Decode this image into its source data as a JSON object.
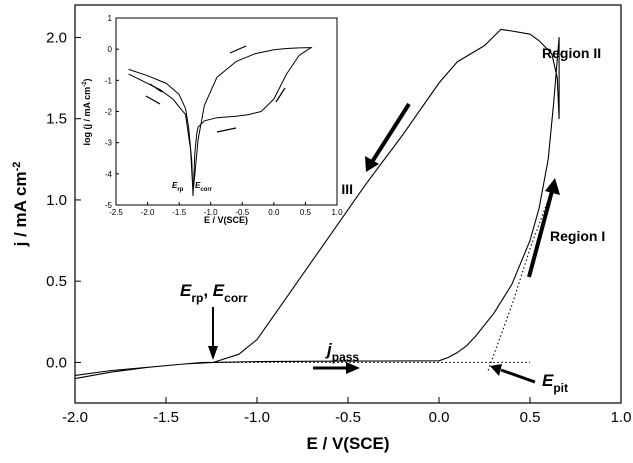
{
  "chart_data": [
    {
      "type": "line",
      "xlabel": "E / V(SCE)",
      "ylabel": "j / mA cm",
      "ylabel_sup": "-2",
      "xlim": [
        -2.0,
        1.0
      ],
      "ylim": [
        -0.25,
        2.2
      ],
      "x_ticks": [
        "-2.0",
        "-1.5",
        "-1.0",
        "-0.5",
        "0.0",
        "0.5",
        "1.0"
      ],
      "y_ticks": [
        "0.0",
        "0.5",
        "1.0",
        "1.5",
        "2.0"
      ],
      "grid": false,
      "series": [
        {
          "x": [
            -2.0,
            -1.8,
            -1.6,
            -1.4,
            -1.3,
            -1.24,
            -1.0,
            -0.5,
            0.0,
            0.05,
            0.1,
            0.15,
            0.2,
            0.3,
            0.4,
            0.5,
            0.55,
            0.6,
            0.63,
            0.66,
            0.66,
            0.65,
            0.62,
            0.55,
            0.5,
            0.45,
            0.4,
            0.34,
            0.25,
            0.1,
            0.0,
            -0.2,
            -0.4,
            -0.5,
            -0.6,
            -0.8,
            -0.9,
            -1.0,
            -1.1,
            -1.24,
            -1.4,
            -1.6,
            -1.8,
            -2.0
          ],
          "y": [
            -0.1,
            -0.06,
            -0.03,
            -0.01,
            0.0,
            0.0,
            0.005,
            0.008,
            0.01,
            0.03,
            0.06,
            0.1,
            0.16,
            0.3,
            0.48,
            0.75,
            0.95,
            1.25,
            1.6,
            2.0,
            1.5,
            1.75,
            1.9,
            1.98,
            2.02,
            2.03,
            2.04,
            2.05,
            1.95,
            1.85,
            1.72,
            1.4,
            1.1,
            0.94,
            0.78,
            0.46,
            0.3,
            0.14,
            0.05,
            0.0,
            -0.01,
            -0.03,
            -0.05,
            -0.08
          ]
        },
        {
          "style": "dotted",
          "x": [
            -1.24,
            0.0,
            0.5
          ],
          "y": [
            0.0,
            0.0,
            0.0
          ]
        },
        {
          "style": "dotted",
          "x": [
            0.27,
            0.4,
            0.5,
            0.6
          ],
          "y": [
            -0.05,
            0.35,
            0.7,
            1.0
          ]
        }
      ],
      "annotations": {
        "region_ii": "Region II",
        "region_i": "Region I",
        "region_iii": "Region III",
        "j_pass": "j",
        "j_pass_sub": "pass",
        "e_pit": "E",
        "e_pit_sub": "pit",
        "e_rp": "E",
        "e_rp_sub": "rp",
        "comma": ", ",
        "e_corr": "E",
        "e_corr_sub": "corr"
      }
    },
    {
      "type": "line",
      "xlabel": "E / V(SCE)",
      "ylabel": "log (j / mA cm",
      "ylabel_sup": "-2",
      "ylabel_end": ")",
      "xlim": [
        -2.5,
        1.0
      ],
      "ylim": [
        -5,
        1
      ],
      "x_ticks": [
        "-2.5",
        "-2.0",
        "-1.5",
        "-1.0",
        "-0.5",
        "0.0",
        "0.5",
        "1.0"
      ],
      "y_ticks": [
        "1",
        "0",
        "-1",
        "-2",
        "-3",
        "-4",
        "-5"
      ],
      "annotations": {
        "e_rp": "E",
        "e_rp_sub": "rp",
        "e_corr": "E",
        "e_corr_sub": "corr"
      },
      "series": [
        {
          "x": [
            -2.3,
            -2.0,
            -1.7,
            -1.5,
            -1.4,
            -1.35,
            -1.3,
            -1.28,
            -1.25,
            -1.22,
            -1.2,
            -1.1,
            -0.9,
            -0.6,
            -0.4,
            -0.2,
            0.0,
            0.2,
            0.4,
            0.55,
            0.6,
            0.4,
            0.2,
            0.0,
            -0.3,
            -0.6,
            -0.9,
            -1.1,
            -1.2,
            -1.25,
            -1.28,
            -1.32,
            -1.4,
            -1.6,
            -1.8,
            -2.1,
            -2.3
          ],
          "y": [
            -0.65,
            -0.85,
            -1.1,
            -1.45,
            -1.9,
            -2.5,
            -3.6,
            -4.7,
            -3.3,
            -2.7,
            -2.5,
            -2.3,
            -2.2,
            -2.15,
            -2.1,
            -2.0,
            -1.6,
            -0.8,
            -0.2,
            0.0,
            0.05,
            0.04,
            0.02,
            -0.02,
            -0.15,
            -0.4,
            -0.9,
            -1.8,
            -2.9,
            -4.0,
            -4.6,
            -3.2,
            -2.1,
            -1.6,
            -1.3,
            -1.0,
            -0.8
          ]
        }
      ]
    }
  ]
}
